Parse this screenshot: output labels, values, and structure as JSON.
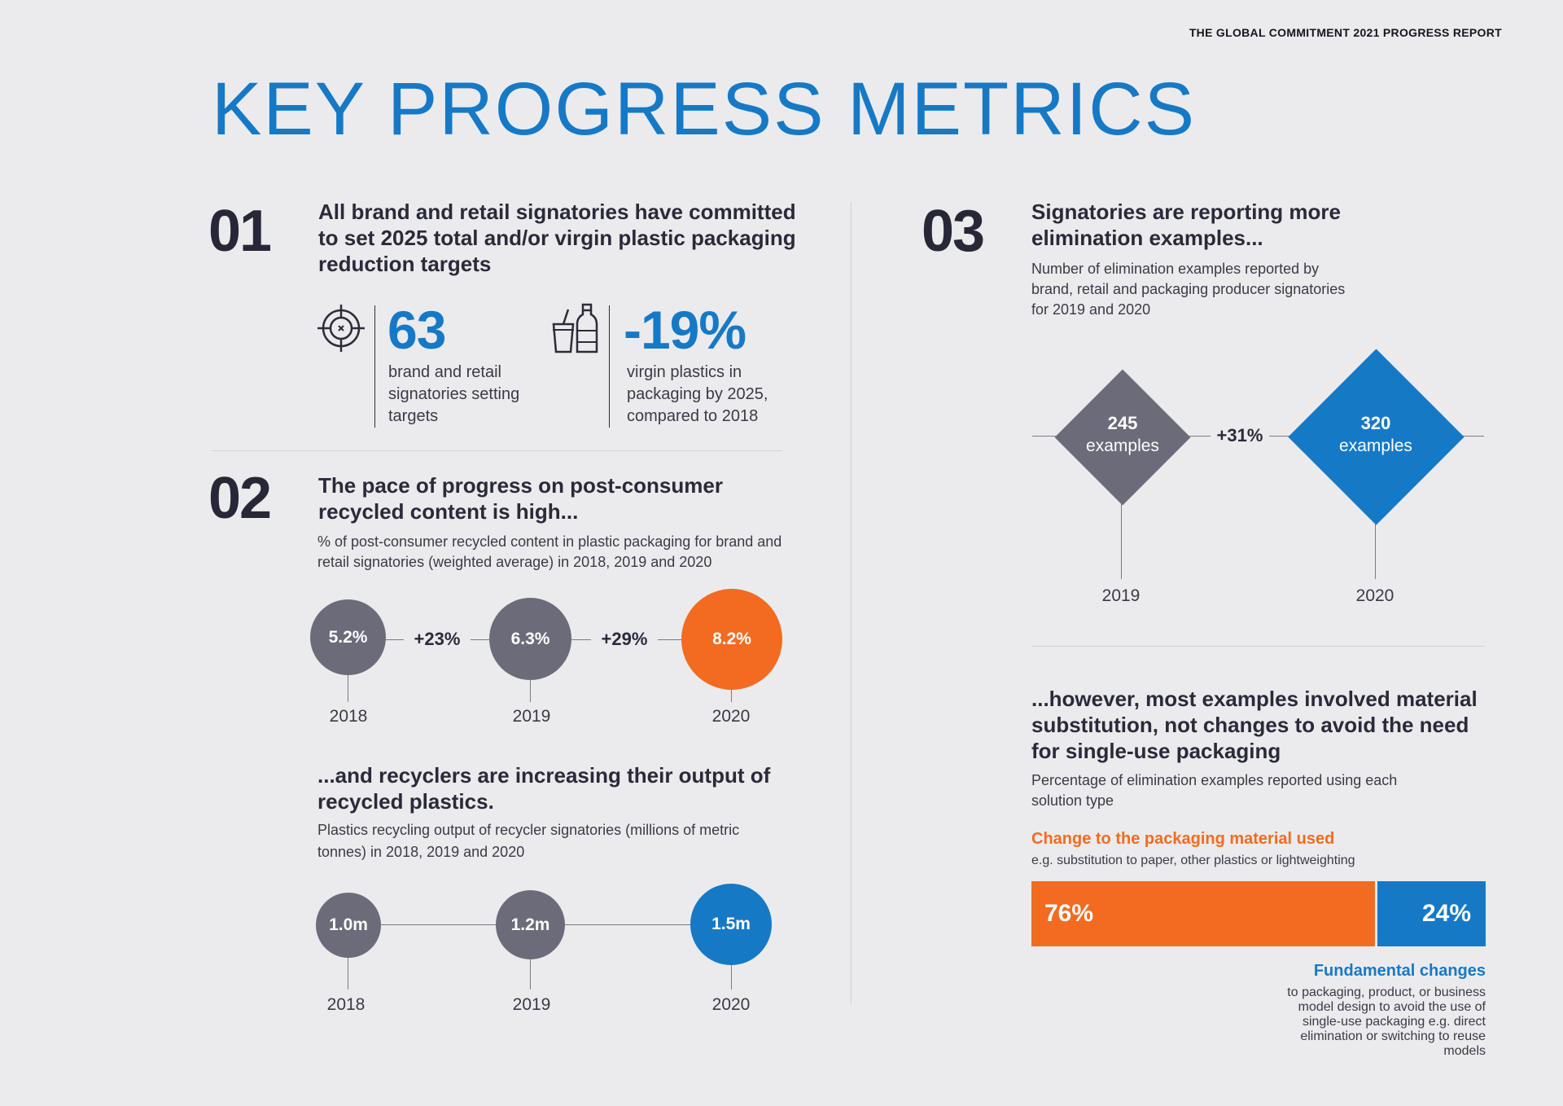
{
  "header": {
    "report_title": "THE GLOBAL COMMITMENT 2021 PROGRESS REPORT",
    "page_title": "KEY PROGRESS METRICS"
  },
  "section1": {
    "number": "01",
    "heading": "All brand and retail signatories have committed to set 2025 total and/or virgin plastic packaging reduction targets",
    "stat1": {
      "value": "63",
      "text": "brand and retail signatories setting targets",
      "icon": "target-icon"
    },
    "stat2": {
      "value": "-19%",
      "text": "virgin plastics in packaging by 2025, compared to 2018",
      "icon": "cup-bottle-icon"
    }
  },
  "section2": {
    "number": "02",
    "heading": "The pace of progress on post-consumer recycled content is high...",
    "description": "% of post-consumer recycled content in plastic packaging for brand and retail signatories (weighted average) in 2018, 2019 and 2020",
    "pcr": [
      {
        "year": "2018",
        "value": "5.2%",
        "color": "#6b6b7a"
      },
      {
        "year": "2019",
        "value": "6.3%",
        "color": "#6b6b7a"
      },
      {
        "year": "2020",
        "value": "8.2%",
        "color": "#f26b20"
      }
    ],
    "pcr_growth": [
      "+23%",
      "+29%"
    ],
    "recyclers_heading": "...and recyclers are increasing their output of recycled plastics.",
    "recyclers_description": "Plastics recycling output of recycler signatories (millions of metric tonnes) in 2018, 2019 and 2020",
    "recyclers": [
      {
        "year": "2018",
        "value": "1.0m",
        "color": "#6b6b7a"
      },
      {
        "year": "2019",
        "value": "1.2m",
        "color": "#6b6b7a"
      },
      {
        "year": "2020",
        "value": "1.5m",
        "color": "#1679c6"
      }
    ]
  },
  "section3": {
    "number": "03",
    "heading": "Signatories are reporting more elimination examples...",
    "description": "Number of elimination examples reported by brand, retail and packaging producer signatories for 2019 and 2020",
    "examples": [
      {
        "year": "2019",
        "value": "245",
        "unit": "examples",
        "color": "#6b6b7a"
      },
      {
        "year": "2020",
        "value": "320",
        "unit": "examples",
        "color": "#1679c6"
      }
    ],
    "growth": "+31%",
    "however_heading": "...however, most examples involved material substitution, not changes to avoid the need for single-use packaging",
    "however_description": "Percentage of elimination examples reported using each solution type",
    "material_label": "Change to the packaging material used",
    "material_note": "e.g. substitution to paper, other plastics or lightweighting",
    "material_pct": "76%",
    "material_share": 76,
    "fundamental_pct": "24%",
    "fundamental_share": 24,
    "fundamental_label": "Fundamental changes",
    "fundamental_note": "to packaging, product, or business model design to avoid the use of single-use packaging e.g. direct elimination or switching to reuse models",
    "colors": {
      "orange": "#f26b20",
      "blue": "#1679c6"
    }
  }
}
